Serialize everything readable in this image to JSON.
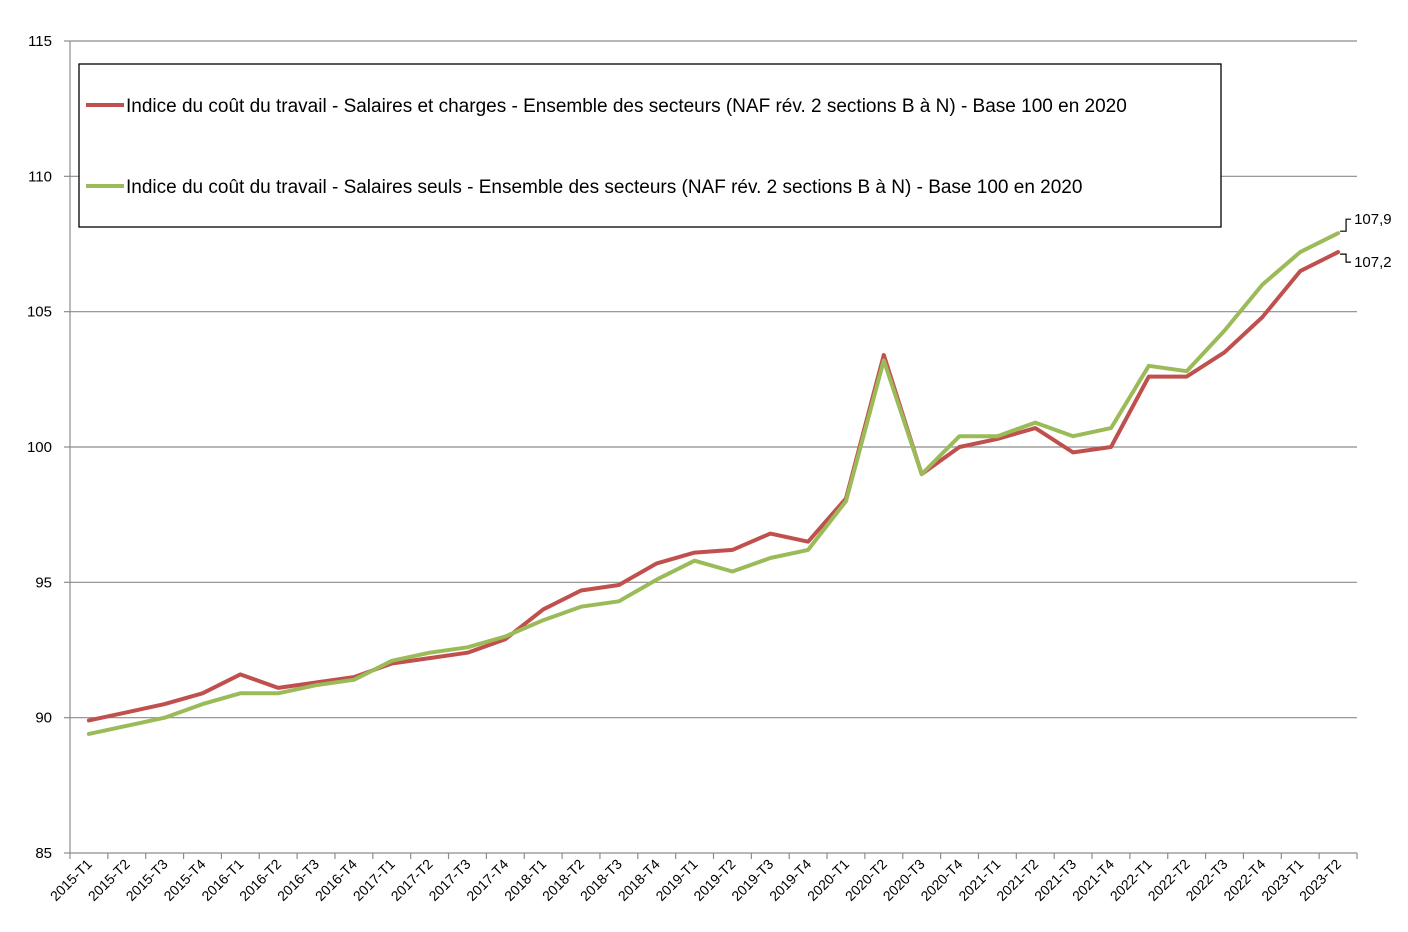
{
  "chart_data": {
    "type": "line",
    "title": "",
    "xlabel": "",
    "ylabel": "",
    "ylim": [
      85,
      115
    ],
    "yticks": [
      85,
      90,
      95,
      100,
      105,
      110,
      115
    ],
    "grid": "horizontal",
    "legend_position": "top-left (boxed)",
    "categories": [
      "2015-T1",
      "2015-T2",
      "2015-T3",
      "2015-T4",
      "2016-T1",
      "2016-T2",
      "2016-T3",
      "2016-T4",
      "2017-T1",
      "2017-T2",
      "2017-T3",
      "2017-T4",
      "2018-T1",
      "2018-T2",
      "2018-T3",
      "2018-T4",
      "2019-T1",
      "2019-T2",
      "2019-T3",
      "2019-T4",
      "2020-T1",
      "2020-T2",
      "2020-T3",
      "2020-T4",
      "2021-T1",
      "2021-T2",
      "2021-T3",
      "2021-T4",
      "2022-T1",
      "2022-T2",
      "2022-T3",
      "2022-T4",
      "2023-T1",
      "2023-T2"
    ],
    "series": [
      {
        "name": "Indice du coût du travail - Salaires et charges - Ensemble des secteurs (NAF rév. 2 sections B à N) - Base 100 en 2020",
        "color": "#c0504d",
        "values": [
          89.9,
          90.2,
          90.5,
          90.9,
          91.6,
          91.1,
          91.3,
          91.5,
          92.0,
          92.2,
          92.4,
          92.9,
          94.0,
          94.7,
          94.9,
          95.7,
          96.1,
          96.2,
          96.8,
          96.5,
          98.1,
          103.4,
          99.0,
          100.0,
          100.3,
          100.7,
          99.8,
          100.0,
          102.6,
          102.6,
          103.5,
          104.8,
          106.5,
          107.2
        ],
        "end_label": "107,2"
      },
      {
        "name": "Indice du coût du travail - Salaires seuls - Ensemble des secteurs (NAF rév. 2 sections B à N) - Base 100 en 2020",
        "color": "#9bbb59",
        "values": [
          89.4,
          89.7,
          90.0,
          90.5,
          90.9,
          90.9,
          91.2,
          91.4,
          92.1,
          92.4,
          92.6,
          93.0,
          93.6,
          94.1,
          94.3,
          95.1,
          95.8,
          95.4,
          95.9,
          96.2,
          98.0,
          103.2,
          99.0,
          100.4,
          100.4,
          100.9,
          100.4,
          100.7,
          103.0,
          102.8,
          104.3,
          106.0,
          107.2,
          107.9
        ],
        "end_label": "107,9"
      }
    ]
  }
}
